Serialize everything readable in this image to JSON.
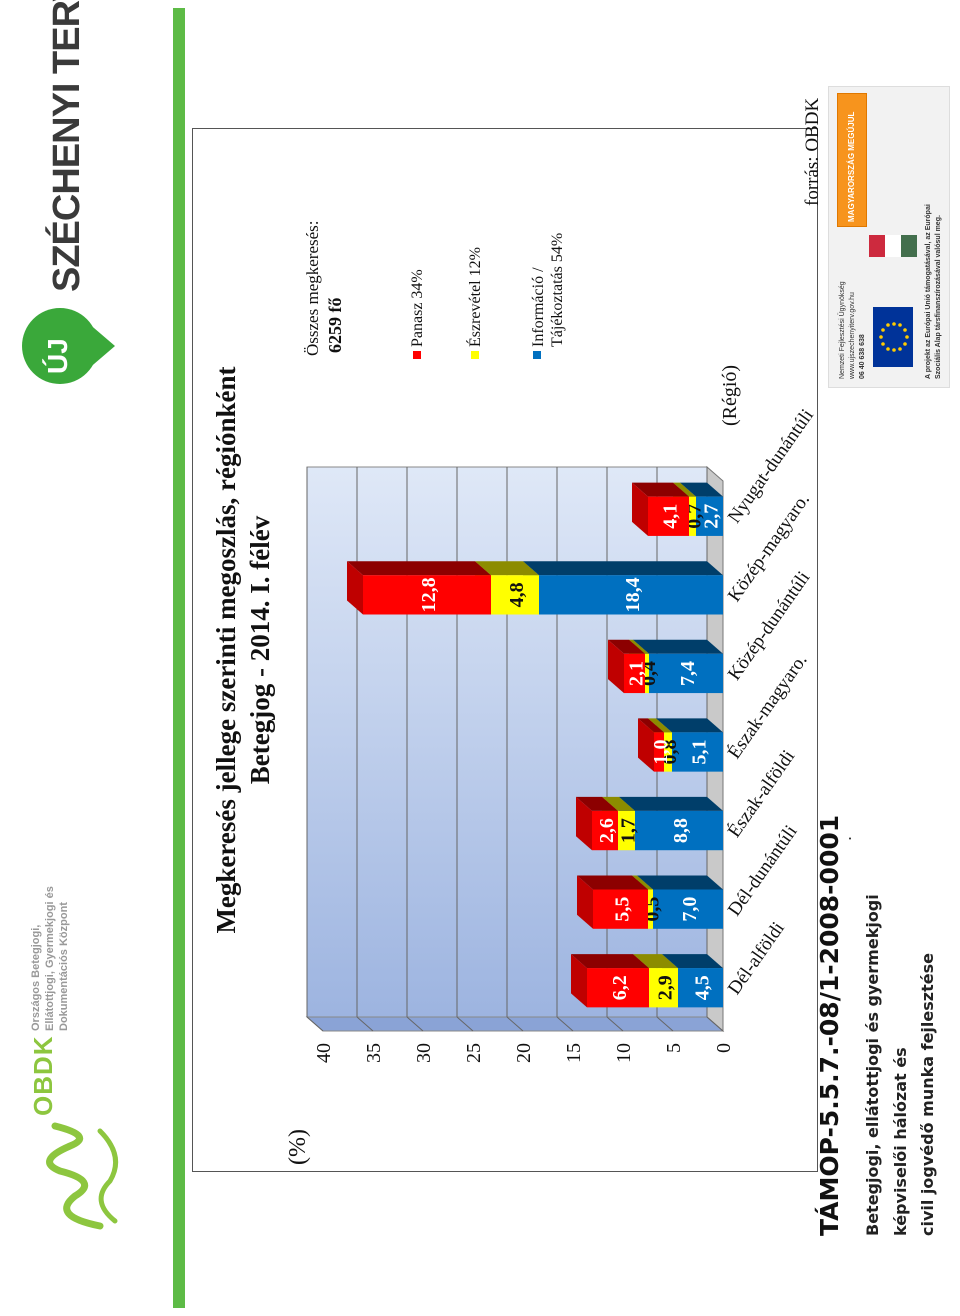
{
  "header": {
    "brand_prefix": "ÚJ",
    "brand_name": "SZÉCHENYI TERV"
  },
  "left_logo": {
    "org_short": "OBDK",
    "org_line1": "Országos Betegjogi,",
    "org_line2": "Ellátottjogi, Gyermekjogi és",
    "org_line3": "Dokumentációs Központ"
  },
  "footer": {
    "project_code": "TÁMOP-5.5.7.-08/1-2008-0001",
    "line1": "Betegjogi, ellátottjogi és gyermekjogi",
    "line2": "képviselői hálózat és",
    "line3": "civil jogvédő munka fejlesztése",
    "dot": "."
  },
  "eu_box": {
    "agency_line1": "Nemzeti Fejlesztési Ügynökség",
    "agency_line2": "www.ujszechenyiterv.gov.hu",
    "agency_line3": "06 40 638 638",
    "hu_banner": "MAGYARORSZÁG MEGÚJUL",
    "eu_text_line1": "A projekt az Európai Unió támogatásával, az Európai",
    "eu_text_line2": "Szociális Alap társfinanszírozásával valósul meg."
  },
  "source": "forrás: OBDK",
  "colors": {
    "panasz": "#ff0000",
    "eszrevetel": "#ffff00",
    "informacio": "#0070c0",
    "green_bar": "#5dbb46",
    "brand_green": "#3aa83a"
  },
  "chart_data": {
    "type": "bar",
    "stacked": true,
    "three_d": true,
    "title": "Megkeresés jellege szerinti megoszlás, régiónként",
    "subtitle": "Betegjog - 2014. I. félév",
    "ylabel": "(%)",
    "xlabel": "(Régió)",
    "ylim": [
      0,
      40
    ],
    "yticks": [
      "0",
      "5",
      "10",
      "15",
      "20",
      "25",
      "30",
      "35",
      "40"
    ],
    "grid": true,
    "categories": [
      "Dél-alföldi",
      "Dél-dunántúli",
      "Észak-alföldi",
      "Észak-magyaro.",
      "Közép-dunántúli",
      "Közép-magyaro.",
      "Nyugat-dunántúli"
    ],
    "series": [
      {
        "name": "Információ / Tájékoztatás 54%",
        "color": "#0070c0",
        "values": [
          4.5,
          7.0,
          8.8,
          5.1,
          7.4,
          18.4,
          2.7
        ],
        "labels": [
          "4,5",
          "7,0",
          "8,8",
          "5,1",
          "7,4",
          "18,4",
          "2,7"
        ]
      },
      {
        "name": "Észrevétel 12%",
        "color": "#ffff00",
        "values": [
          2.9,
          0.5,
          1.7,
          0.8,
          0.4,
          4.8,
          0.7
        ],
        "labels": [
          "2,9",
          "0,5",
          "1,7",
          "0,8",
          "0,4",
          "4,8",
          "0,7"
        ]
      },
      {
        "name": "Panasz 34%",
        "color": "#ff0000",
        "values": [
          6.2,
          5.5,
          2.6,
          1.0,
          2.1,
          12.8,
          4.1
        ],
        "labels": [
          "6,2",
          "5,5",
          "2,6",
          "1,0",
          "2,1",
          "12,8",
          "4,1"
        ]
      }
    ],
    "legend": {
      "placement": "right",
      "total_label": "Összes megkeresés:",
      "total_value": "6259 fő",
      "items": [
        "Panasz 34%",
        "Észrevétel 12%",
        "Információ / Tájékoztatás 54%"
      ]
    }
  }
}
